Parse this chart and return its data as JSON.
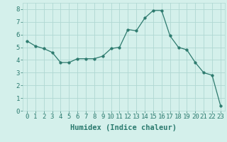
{
  "x": [
    0,
    1,
    2,
    3,
    4,
    5,
    6,
    7,
    8,
    9,
    10,
    11,
    12,
    13,
    14,
    15,
    16,
    17,
    18,
    19,
    20,
    21,
    22,
    23
  ],
  "y": [
    5.5,
    5.1,
    4.9,
    4.6,
    3.8,
    3.8,
    4.1,
    4.1,
    4.1,
    4.3,
    4.9,
    5.0,
    6.4,
    6.3,
    7.3,
    7.9,
    7.9,
    5.9,
    5.0,
    4.8,
    3.8,
    3.0,
    2.8,
    0.4
  ],
  "line_color": "#2d7a6e",
  "marker": "o",
  "marker_size": 2.5,
  "bg_color": "#d4f0eb",
  "grid_color": "#b0d8d2",
  "xlabel": "Humidex (Indice chaleur)",
  "xlim": [
    -0.5,
    23.5
  ],
  "ylim": [
    0,
    8.5
  ],
  "xticks": [
    0,
    1,
    2,
    3,
    4,
    5,
    6,
    7,
    8,
    9,
    10,
    11,
    12,
    13,
    14,
    15,
    16,
    17,
    18,
    19,
    20,
    21,
    22,
    23
  ],
  "yticks": [
    0,
    1,
    2,
    3,
    4,
    5,
    6,
    7,
    8
  ],
  "tick_labelsize": 6.5,
  "xlabel_fontsize": 7.5,
  "text_color": "#2a7a6e"
}
